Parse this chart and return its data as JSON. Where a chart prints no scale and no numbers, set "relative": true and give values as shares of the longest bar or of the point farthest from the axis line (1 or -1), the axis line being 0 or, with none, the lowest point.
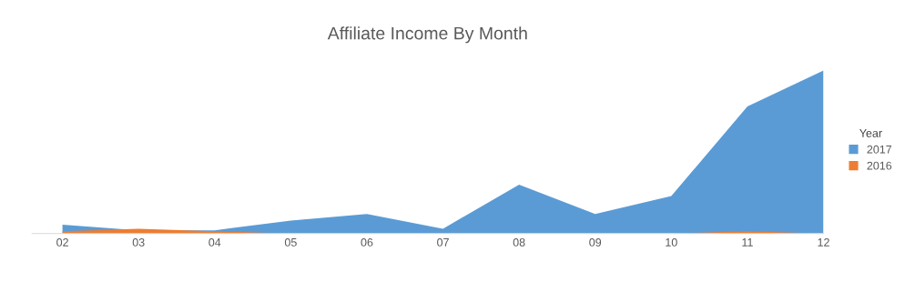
{
  "chart_data": {
    "type": "area",
    "title": "Affiliate Income By Month",
    "relative": true,
    "categories": [
      "02",
      "03",
      "04",
      "05",
      "06",
      "07",
      "08",
      "09",
      "10",
      "11",
      "12"
    ],
    "series": [
      {
        "name": "2017",
        "color": "#5b9bd5",
        "values": [
          0.055,
          0.02,
          0.02,
          0.08,
          0.12,
          0.03,
          0.3,
          0.12,
          0.23,
          0.78,
          1.0
        ]
      },
      {
        "name": "2016",
        "color": "#ed7d31",
        "values": [
          0.014,
          0.03,
          0.014,
          0,
          0,
          0,
          0,
          0,
          0,
          0.014,
          0
        ]
      }
    ],
    "legend": "right",
    "legend_title": "Year"
  }
}
